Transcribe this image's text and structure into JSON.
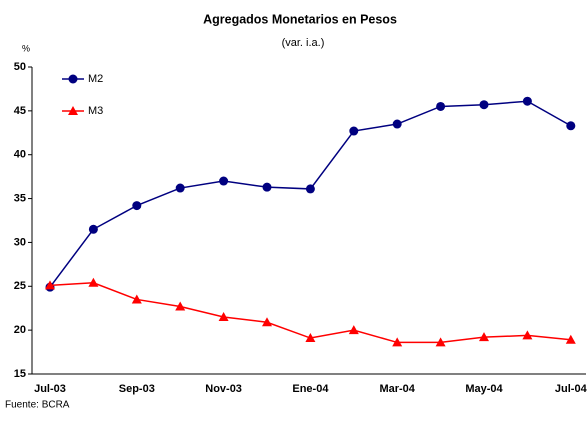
{
  "chart_data": {
    "type": "line",
    "title": "Agregados Monetarios en Pesos",
    "subtitle": "(var. i.a.)",
    "y_label": "%",
    "source": "Fuente: BCRA",
    "categories": [
      "Jul-03",
      null,
      "Sep-03",
      null,
      "Nov-03",
      null,
      "Ene-04",
      null,
      "Mar-04",
      null,
      "May-04",
      null,
      "Jul-04"
    ],
    "series": [
      {
        "name": "M2",
        "color": "#000080",
        "marker": "circle",
        "values": [
          24.9,
          31.5,
          34.2,
          36.2,
          37.0,
          36.3,
          36.1,
          42.7,
          43.5,
          45.5,
          45.7,
          46.1,
          43.3
        ]
      },
      {
        "name": "M3",
        "color": "#ff0000",
        "marker": "triangle",
        "values": [
          25.1,
          25.4,
          23.5,
          22.7,
          21.5,
          20.9,
          19.1,
          20.0,
          18.6,
          18.6,
          19.2,
          19.4,
          18.9
        ]
      }
    ],
    "ylim": [
      15,
      50
    ],
    "yticks": [
      15,
      20,
      25,
      30,
      35,
      40,
      45,
      50
    ],
    "grid": false,
    "legend": "top-left"
  }
}
